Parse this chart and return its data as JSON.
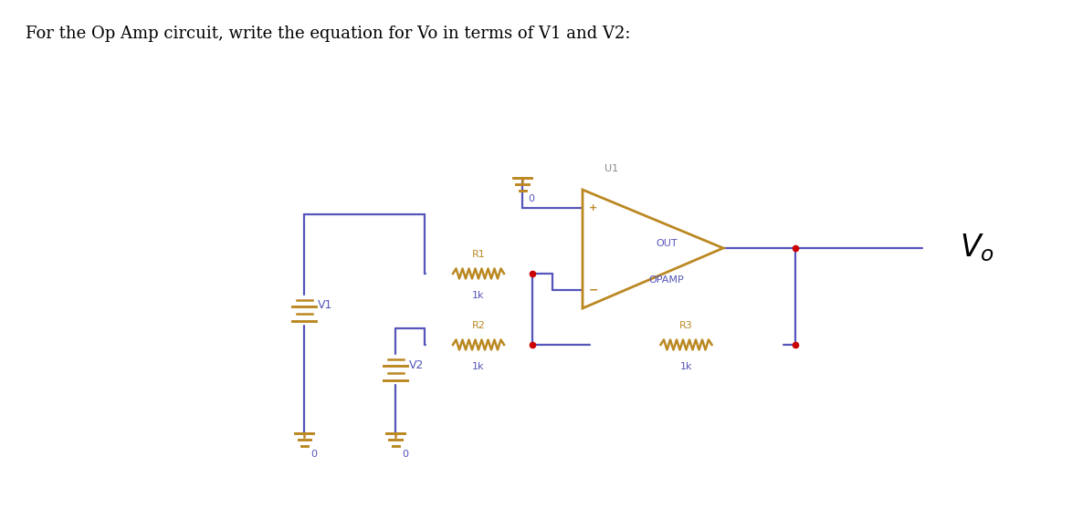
{
  "title": "For the Op Amp circuit, write the equation for Vo in terms of V1 and V2:",
  "title_fontsize": 13,
  "wire_color": "#5555bb",
  "resistor_color": "#bb8822",
  "opamp_color": "#bb8822",
  "node_color": "#cc0000",
  "ground_color": "#bb8822",
  "battery_color": "#bb8822",
  "vo_label": "$V_o$",
  "vo_fontsize": 24,
  "background": "#ffffff",
  "U1_label": "U1",
  "OUT_label": "OUT",
  "OPAMP_label": "OPAMP",
  "R1_label": "R1",
  "R1_val": "1k",
  "R2_label": "R2",
  "R2_val": "1k",
  "R3_label": "R3",
  "R3_val": "1k",
  "V1_label": "V1",
  "V2_label": "V2",
  "gnd_label": "0",
  "label_fontsize": 8,
  "label_color_blue": "#5555bb",
  "label_color_dark": "#333333"
}
